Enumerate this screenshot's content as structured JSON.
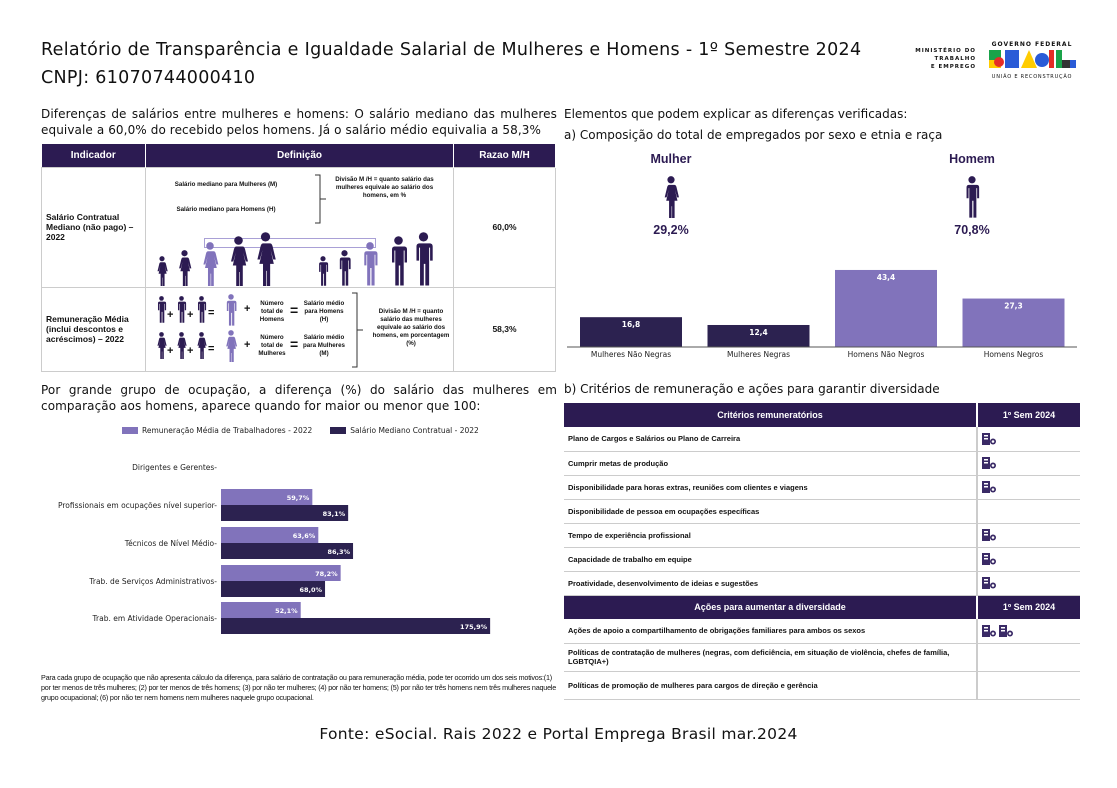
{
  "header": {
    "title": "Relatório de Transparência e Igualdade Salarial de Mulheres e Homens - 1º Semestre 2024",
    "cnpj": "CNPJ: 61070744000410",
    "logo_ministry": [
      "MINISTÉRIO DO",
      "TRABALHO",
      "E EMPREGO"
    ],
    "logo_gov": "GOVERNO FEDERAL",
    "logo_brasil": "BRASIL",
    "logo_tagline": "UNIÃO E RECONSTRUÇÃO"
  },
  "intro": "Diferenças de salários entre mulheres e homens: O salário mediano das mulheres equivale a 60,0% do recebido pelos homens. Já o salário médio equivalia a 58,3%",
  "indicator_table": {
    "headers": [
      "Indicador",
      "Definição",
      "Razao M/H"
    ],
    "rows": [
      {
        "indicator": "Salário Contratual Mediano (não pago) – 2022",
        "def_m": "Salário mediano para Mulheres (M)",
        "def_h": "Salário mediano para Homens (H)",
        "def_div": "Divisão M /H = quanto salário das mulheres equivale ao salário dos homens, em %",
        "ratio": "60,0%"
      },
      {
        "indicator": "Remuneração Média (inclui descontos e acréscimos) – 2022",
        "total_h": "Número total de Homens",
        "avg_h": "Salário médio para Homens (H)",
        "total_m": "Número total de Mulheres",
        "avg_m": "Salário médio para Mulheres (M)",
        "def_div": "Divisão M /H = quanto salário das mulheres equivale ao salário dos homens, em porcentagem (%)",
        "ratio": "58,3%"
      }
    ]
  },
  "occupation_intro": "Por grande grupo de ocupação, a diferença (%) do salário das mulheres em comparação aos homens, aparece quando for maior ou menor que 100:",
  "footnote": "Para cada grupo de ocupação que não apresenta cálculo da diferença, para salário de contratação ou para remuneração média, pode ter ocorrido um dos seis motivos:(1) por ter menos de três mulheres; (2) por ter menos de três homens; (3) por não ter mulheres; (4) por não ter homens; (5) por não ter três homens nem três mulheres naquele grupo ocupacional; (6) por não ter nem homens nem mulheres naquele grupo ocupacional.",
  "right": {
    "heading": "Elementos que podem explicar as diferenças verificadas:",
    "sub_a": "a) Composição do total de empregados por sexo e etnia e raça",
    "woman_label": "Mulher",
    "woman_pct": "29,2%",
    "man_label": "Homem",
    "man_pct": "70,8%",
    "sub_b": "b) Critérios de remuneração e ações para garantir diversidade"
  },
  "chart_data": [
    {
      "type": "bar",
      "categories": [
        "Mulheres Não Negras",
        "Mulheres Negras",
        "Homens Não Negros",
        "Homens Negros"
      ],
      "values": [
        16.8,
        12.4,
        43.4,
        27.3
      ],
      "labels": [
        "16,8",
        "12,4",
        "43,4",
        "27,3"
      ],
      "colors": [
        "#2c2250",
        "#2c2250",
        "#8173bb",
        "#8173bb"
      ]
    },
    {
      "type": "bar",
      "orientation": "horizontal",
      "categories": [
        "Dirigentes e Gerentes",
        "Profissionais em ocupações nível superior",
        "Técnicos de Nível Médio",
        "Trab. de Serviços Administrativos",
        "Trab. em Atividade Operacionais"
      ],
      "series": [
        {
          "name": "Remuneração Média de Trabalhadores - 2022",
          "color": "#8173bb",
          "values": [
            null,
            59.7,
            63.6,
            78.2,
            52.1
          ],
          "labels": [
            "",
            "59,7%",
            "63,6%",
            "78,2%",
            "52,1%"
          ]
        },
        {
          "name": "Salário Mediano Contratual - 2022",
          "color": "#2c2250",
          "values": [
            null,
            83.1,
            86.3,
            68.0,
            175.9
          ],
          "labels": [
            "",
            "83,1%",
            "86,3%",
            "68,0%",
            "175,9%"
          ]
        }
      ],
      "legend": "top"
    }
  ],
  "criteria_table": {
    "header": "Critérios remuneratórios",
    "col": "1º Sem 2024",
    "icon": "building-person-icon",
    "rows": [
      {
        "label": "Plano de Cargos e Salários ou Plano de Carreira",
        "marks": 1
      },
      {
        "label": "Cumprir metas de produção",
        "marks": 1
      },
      {
        "label": "Disponibilidade para horas extras, reuniões com clientes e viagens",
        "marks": 1
      },
      {
        "label": "Disponibilidade de pessoa em ocupações específicas",
        "marks": 0
      },
      {
        "label": "Tempo de experiência profissional",
        "marks": 1
      },
      {
        "label": "Capacidade de trabalho em equipe",
        "marks": 1
      },
      {
        "label": "Proatividade, desenvolvimento de ideias e sugestões",
        "marks": 1
      }
    ]
  },
  "actions_table": {
    "header": "Ações para aumentar a diversidade",
    "col": "1º Sem 2024",
    "rows": [
      {
        "label": "Ações de apoio a compartilhamento de obrigações familiares para ambos os sexos",
        "marks": 2
      },
      {
        "label": "Políticas de contratação de mulheres (negras, com deficiência, em situação de violência, chefes de família, LGBTQIA+)",
        "marks": 0
      },
      {
        "label": "Políticas de promoção de mulheres para cargos de direção e gerência",
        "marks": 0
      }
    ]
  },
  "source": "Fonte: eSocial. Rais 2022 e Portal Emprega Brasil mar.2024"
}
